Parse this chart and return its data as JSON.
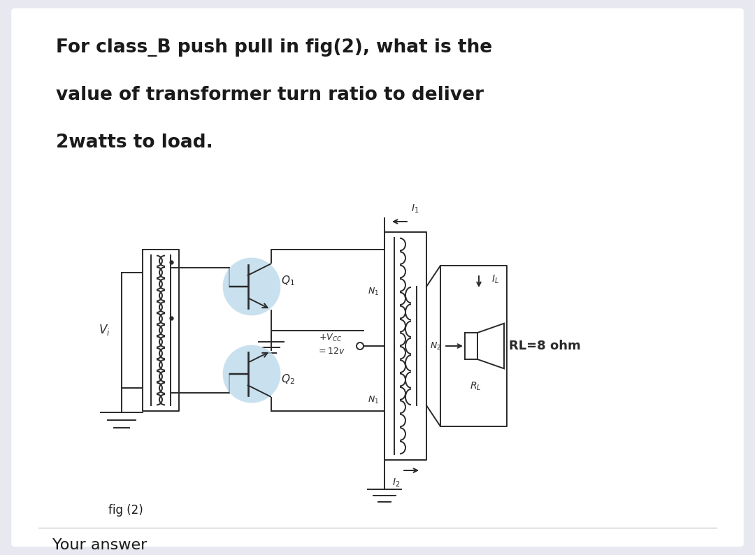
{
  "bg_color": "#e8e8f0",
  "card_color": "#ffffff",
  "title_lines": [
    "For class_B push pull in fig(2), what is the",
    "value of transformer turn ratio to deliver",
    "2watts to load."
  ],
  "title_fontsize": 19,
  "fig_label": "fig (2)",
  "your_answer_label": "Your answer",
  "coil_color": "#2a2a2a",
  "highlight_color": "#b8d8ea",
  "lw": 1.4
}
